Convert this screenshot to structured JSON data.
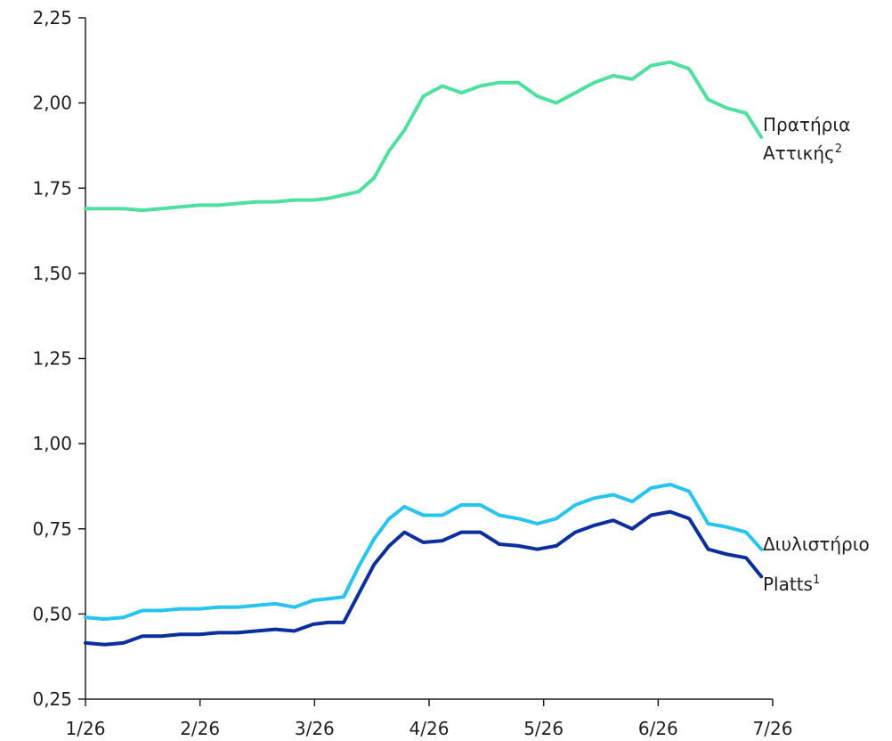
{
  "chart_data": {
    "type": "line",
    "title": "",
    "xlabel": "",
    "ylabel": "",
    "ylim": [
      0.25,
      2.25
    ],
    "xlim": [
      "2026-01-01",
      "2026-07-01"
    ],
    "y_ticks": [
      "0,25",
      "0,50",
      "0,75",
      "1,00",
      "1,25",
      "1,50",
      "1,75",
      "2,00",
      "2,25"
    ],
    "x_ticks": [
      "1/26",
      "2/26",
      "3/26",
      "4/26",
      "5/26",
      "6/26",
      "7/26"
    ],
    "grid": false,
    "legend": "inline labels at the right end of each line",
    "series": [
      {
        "name_parts": [
          "Πρατήρια",
          "Αττικής",
          "2"
        ],
        "color": "#4fe0a0",
        "x": [
          "2026-01-01",
          "2026-01-06",
          "2026-01-11",
          "2026-01-16",
          "2026-01-21",
          "2026-01-26",
          "2026-01-31",
          "2026-02-05",
          "2026-02-10",
          "2026-02-15",
          "2026-02-20",
          "2026-02-25",
          "2026-03-02",
          "2026-03-06",
          "2026-03-10",
          "2026-03-14",
          "2026-03-18",
          "2026-03-22",
          "2026-03-26",
          "2026-03-31",
          "2026-04-05",
          "2026-04-10",
          "2026-04-15",
          "2026-04-20",
          "2026-04-25",
          "2026-04-30",
          "2026-05-05",
          "2026-05-10",
          "2026-05-15",
          "2026-05-20",
          "2026-05-25",
          "2026-05-30",
          "2026-06-04",
          "2026-06-09",
          "2026-06-14",
          "2026-06-19",
          "2026-06-24",
          "2026-06-28"
        ],
        "values": [
          1.69,
          1.69,
          1.69,
          1.685,
          1.69,
          1.695,
          1.7,
          1.7,
          1.705,
          1.71,
          1.71,
          1.715,
          1.715,
          1.72,
          1.73,
          1.74,
          1.78,
          1.86,
          1.92,
          2.02,
          2.05,
          2.03,
          2.05,
          2.06,
          2.06,
          2.02,
          2.0,
          2.03,
          2.06,
          2.08,
          2.07,
          2.11,
          2.12,
          2.1,
          2.01,
          1.985,
          1.97,
          1.9
        ]
      },
      {
        "name_parts": [
          "Διυλιστήριο"
        ],
        "color": "#27c4f0",
        "x": [
          "2026-01-01",
          "2026-01-06",
          "2026-01-11",
          "2026-01-16",
          "2026-01-21",
          "2026-01-26",
          "2026-01-31",
          "2026-02-05",
          "2026-02-10",
          "2026-02-15",
          "2026-02-20",
          "2026-02-25",
          "2026-03-02",
          "2026-03-06",
          "2026-03-10",
          "2026-03-14",
          "2026-03-18",
          "2026-03-22",
          "2026-03-26",
          "2026-03-31",
          "2026-04-05",
          "2026-04-10",
          "2026-04-15",
          "2026-04-20",
          "2026-04-25",
          "2026-04-30",
          "2026-05-05",
          "2026-05-10",
          "2026-05-15",
          "2026-05-20",
          "2026-05-25",
          "2026-05-30",
          "2026-06-04",
          "2026-06-09",
          "2026-06-14",
          "2026-06-19",
          "2026-06-24",
          "2026-06-28"
        ],
        "values": [
          0.49,
          0.485,
          0.49,
          0.51,
          0.51,
          0.515,
          0.515,
          0.52,
          0.52,
          0.525,
          0.53,
          0.52,
          0.54,
          0.545,
          0.55,
          0.64,
          0.72,
          0.78,
          0.815,
          0.79,
          0.79,
          0.82,
          0.82,
          0.79,
          0.78,
          0.765,
          0.78,
          0.82,
          0.84,
          0.85,
          0.83,
          0.87,
          0.88,
          0.86,
          0.765,
          0.755,
          0.74,
          0.69
        ]
      },
      {
        "name_parts": [
          "Platts",
          "1"
        ],
        "color": "#0b2f9c",
        "x": [
          "2026-01-01",
          "2026-01-06",
          "2026-01-11",
          "2026-01-16",
          "2026-01-21",
          "2026-01-26",
          "2026-01-31",
          "2026-02-05",
          "2026-02-10",
          "2026-02-15",
          "2026-02-20",
          "2026-02-25",
          "2026-03-02",
          "2026-03-06",
          "2026-03-10",
          "2026-03-14",
          "2026-03-18",
          "2026-03-22",
          "2026-03-26",
          "2026-03-31",
          "2026-04-05",
          "2026-04-10",
          "2026-04-15",
          "2026-04-20",
          "2026-04-25",
          "2026-04-30",
          "2026-05-05",
          "2026-05-10",
          "2026-05-15",
          "2026-05-20",
          "2026-05-25",
          "2026-05-30",
          "2026-06-04",
          "2026-06-09",
          "2026-06-14",
          "2026-06-19",
          "2026-06-24",
          "2026-06-28"
        ],
        "values": [
          0.415,
          0.41,
          0.415,
          0.435,
          0.435,
          0.44,
          0.44,
          0.445,
          0.445,
          0.45,
          0.455,
          0.45,
          0.47,
          0.475,
          0.475,
          0.56,
          0.645,
          0.7,
          0.74,
          0.71,
          0.715,
          0.74,
          0.74,
          0.705,
          0.7,
          0.69,
          0.7,
          0.74,
          0.76,
          0.775,
          0.75,
          0.79,
          0.8,
          0.78,
          0.69,
          0.675,
          0.665,
          0.61
        ]
      }
    ]
  }
}
